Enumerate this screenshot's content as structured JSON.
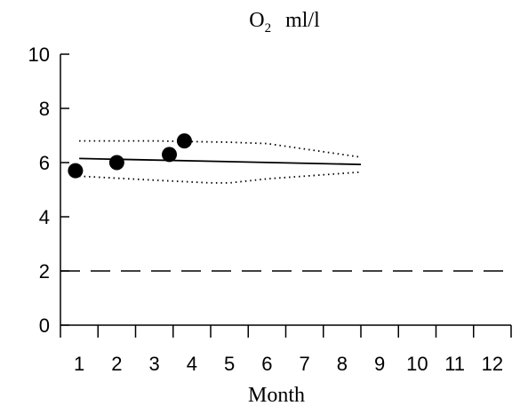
{
  "chart_data": {
    "type": "scatter",
    "title": {
      "main": "O",
      "subscript": "2",
      "unit": "ml/l"
    },
    "xlabel": "Month",
    "ylabel": "",
    "xlim": [
      0.5,
      12.5
    ],
    "ylim": [
      0,
      10
    ],
    "x_ticks": [
      1,
      2,
      3,
      4,
      5,
      6,
      7,
      8,
      9,
      10,
      11,
      12
    ],
    "x_tick_labels": [
      "1",
      "2",
      "3",
      "4",
      "5",
      "6",
      "7",
      "8",
      "9",
      "10",
      "11",
      "12"
    ],
    "y_ticks": [
      0,
      2,
      4,
      6,
      8,
      10
    ],
    "y_tick_labels": [
      "0",
      "2",
      "4",
      "6",
      "8",
      "10"
    ],
    "grid": false,
    "series": [
      {
        "style": "points",
        "color": "#000000",
        "x": [
          0.9,
          2.0,
          3.4,
          3.8
        ],
        "y": [
          5.7,
          6.0,
          6.3,
          6.8
        ]
      },
      {
        "style": "solid-line",
        "color": "#000000",
        "x": [
          1.0,
          8.5
        ],
        "y": [
          6.15,
          5.93
        ]
      },
      {
        "style": "dotted-line",
        "color": "#000000",
        "x": [
          1.0,
          3.0,
          5.0,
          6.0,
          8.5
        ],
        "y": [
          6.8,
          6.8,
          6.75,
          6.7,
          6.2
        ]
      },
      {
        "style": "dotted-line",
        "color": "#000000",
        "x": [
          1.0,
          3.0,
          4.5,
          5.0,
          6.0,
          8.5
        ],
        "y": [
          5.5,
          5.35,
          5.25,
          5.25,
          5.4,
          5.65
        ]
      },
      {
        "style": "dashed-line",
        "color": "#000000",
        "x": [
          0.5,
          12.5
        ],
        "y": [
          2,
          2
        ]
      }
    ]
  }
}
